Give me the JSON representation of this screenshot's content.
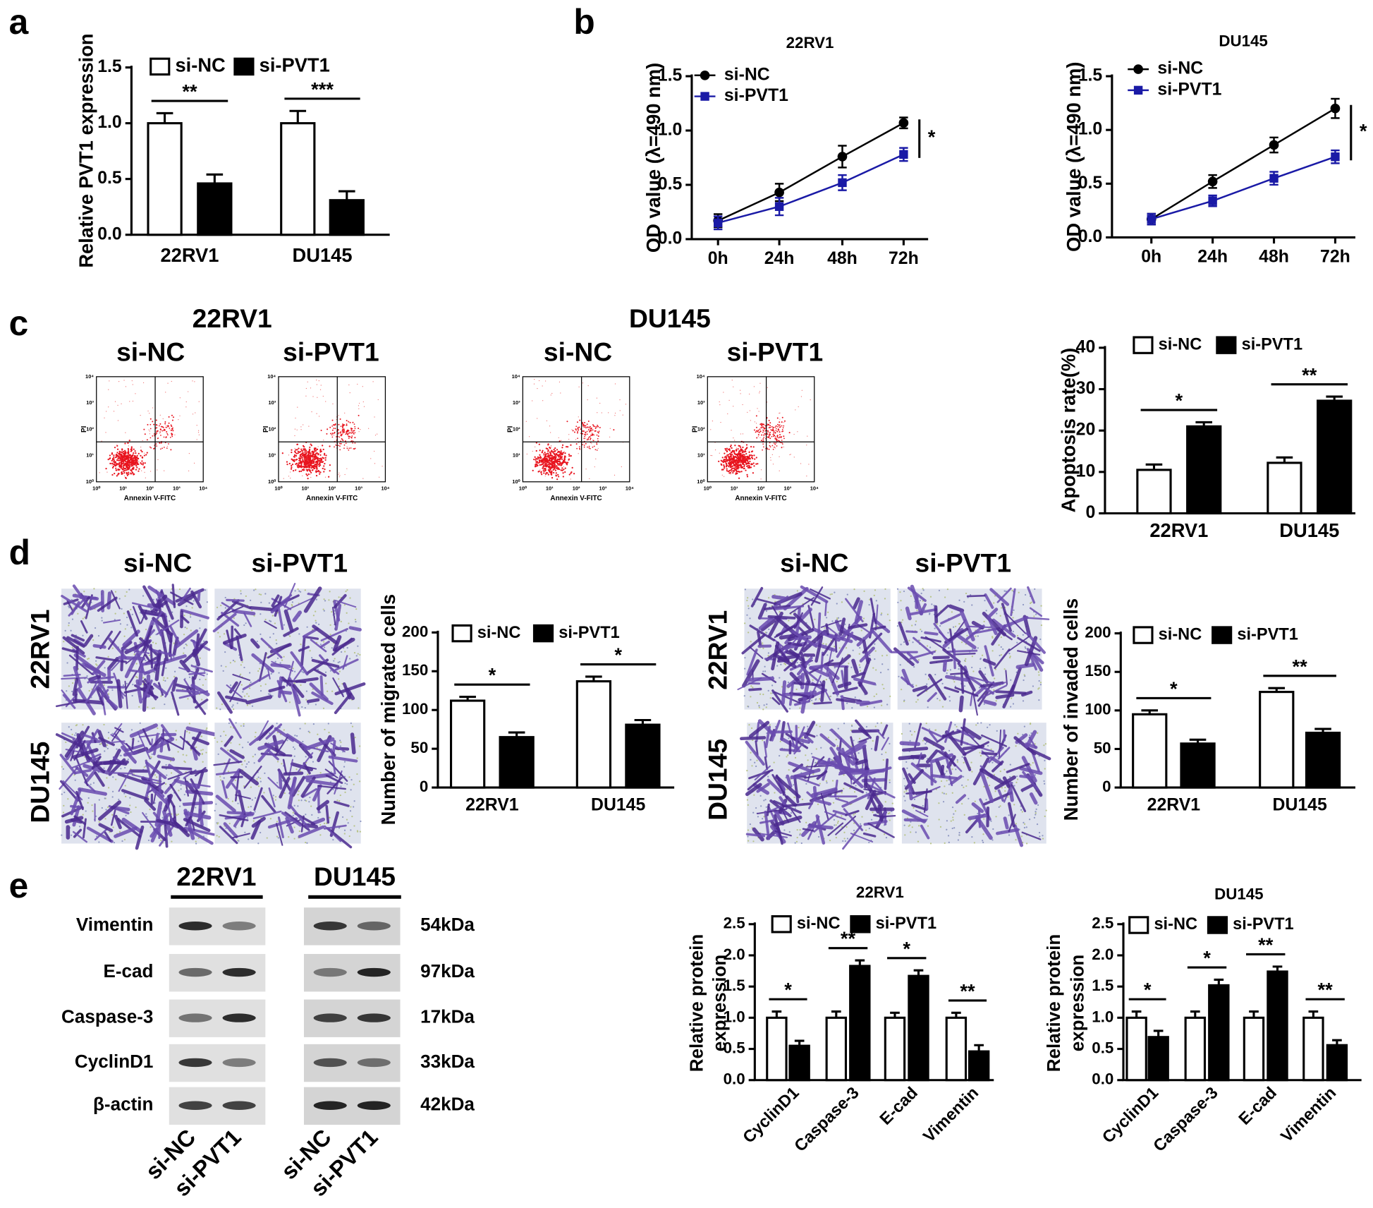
{
  "figure": {
    "panel_labels": [
      "a",
      "b",
      "c",
      "d",
      "e"
    ],
    "flow": {
      "cell_lines": [
        "22RV1",
        "DU145"
      ],
      "groups": [
        "si-NC",
        "si-PVT1"
      ],
      "y_label": "PI",
      "x_label": "Annexin V-FITC",
      "tick_labels": [
        "10⁰",
        "10¹",
        "10²",
        "10³",
        "10⁴"
      ]
    },
    "transwell": {
      "groups": [
        "si-NC",
        "si-PVT1"
      ],
      "cell_lines": [
        "22RV1",
        "DU145"
      ]
    },
    "western": {
      "cell_lines": [
        "22RV1",
        "DU145"
      ],
      "proteins": [
        "Vimentin",
        "E-cad",
        "Caspase-3",
        "CyclinD1",
        "β-actin"
      ],
      "sizes": [
        "54kDa",
        "97kDa",
        "17kDa",
        "33kDa",
        "42kDa"
      ],
      "lanes": [
        "si-NC",
        "si-PVT1"
      ]
    }
  },
  "chart_data": [
    {
      "type": "bar",
      "y_label": "Relative PVT1 expression",
      "categories": [
        "22RV1",
        "DU145"
      ],
      "series": [
        {
          "name": "si-NC",
          "color": "#ffffff",
          "values": [
            1.0,
            1.0
          ],
          "errors": [
            0.09,
            0.11
          ]
        },
        {
          "name": "si-PVT1",
          "color": "#000000",
          "values": [
            0.46,
            0.31
          ],
          "errors": [
            0.08,
            0.08
          ]
        }
      ],
      "significance": [
        "**",
        "***"
      ],
      "ylim": [
        0,
        1.5
      ],
      "yticks": [
        {
          "value": 0,
          "label": "0.0"
        },
        0.5,
        {
          "value": 1,
          "label": "1.0"
        },
        1.5
      ]
    },
    {
      "type": "line",
      "title": "22RV1",
      "y_label": "OD value (λ=490 nm)",
      "categories": [
        "0h",
        "24h",
        "48h",
        "72h"
      ],
      "series": [
        {
          "name": "si-NC",
          "color": "#000000",
          "marker": "circle",
          "values": [
            0.17,
            0.43,
            0.76,
            1.07
          ],
          "errors": [
            0.06,
            0.08,
            0.1,
            0.05
          ]
        },
        {
          "name": "si-PVT1",
          "color": "#1a1aa6",
          "marker": "square",
          "values": [
            0.15,
            0.3,
            0.52,
            0.78
          ],
          "errors": [
            0.06,
            0.08,
            0.07,
            0.06
          ]
        }
      ],
      "significance": "*",
      "ylim": [
        0,
        1.5
      ],
      "yticks": [
        {
          "value": 0,
          "label": "0.0"
        },
        0.5,
        {
          "value": 1,
          "label": "1.0"
        },
        1.5
      ]
    },
    {
      "type": "line",
      "title": "DU145",
      "y_label": "OD value (λ=490 nm)",
      "categories": [
        "0h",
        "24h",
        "48h",
        "72h"
      ],
      "series": [
        {
          "name": "si-NC",
          "color": "#000000",
          "marker": "circle",
          "values": [
            0.17,
            0.52,
            0.86,
            1.2
          ],
          "errors": [
            0.05,
            0.06,
            0.07,
            0.09
          ]
        },
        {
          "name": "si-PVT1",
          "color": "#1a1aa6",
          "marker": "square",
          "values": [
            0.17,
            0.34,
            0.55,
            0.75
          ],
          "errors": [
            0.05,
            0.05,
            0.06,
            0.06
          ]
        }
      ],
      "significance": "*",
      "ylim": [
        0,
        1.5
      ],
      "yticks": [
        {
          "value": 0,
          "label": "0.0"
        },
        0.5,
        {
          "value": 1,
          "label": "1.0"
        },
        1.5
      ]
    },
    {
      "type": "bar",
      "y_label": "Apoptosis rate(%)",
      "categories": [
        "22RV1",
        "DU145"
      ],
      "series": [
        {
          "name": "si-NC",
          "color": "#ffffff",
          "values": [
            10.5,
            12.2
          ],
          "errors": [
            1.3,
            1.3
          ]
        },
        {
          "name": "si-PVT1",
          "color": "#000000",
          "values": [
            21,
            27.2
          ],
          "errors": [
            1.0,
            1.0
          ]
        }
      ],
      "significance": [
        "*",
        "**"
      ],
      "ylim": [
        0,
        40
      ],
      "yticks": [
        0,
        10,
        20,
        30,
        40
      ]
    },
    {
      "type": "bar",
      "y_label": "Number of migrated cells",
      "categories": [
        "22RV1",
        "DU145"
      ],
      "series": [
        {
          "name": "si-NC",
          "color": "#ffffff",
          "values": [
            112,
            137
          ],
          "errors": [
            5,
            6
          ]
        },
        {
          "name": "si-PVT1",
          "color": "#000000",
          "values": [
            65,
            81
          ],
          "errors": [
            6,
            6
          ]
        }
      ],
      "significance": [
        "*",
        "*"
      ],
      "ylim": [
        0,
        200
      ],
      "yticks": [
        0,
        50,
        100,
        150,
        200
      ]
    },
    {
      "type": "bar",
      "y_label": "Number of invaded cells",
      "categories": [
        "22RV1",
        "DU145"
      ],
      "series": [
        {
          "name": "si-NC",
          "color": "#ffffff",
          "values": [
            95,
            124
          ],
          "errors": [
            5,
            5
          ]
        },
        {
          "name": "si-PVT1",
          "color": "#000000",
          "values": [
            57,
            71
          ],
          "errors": [
            5,
            5
          ]
        }
      ],
      "significance": [
        "*",
        "**"
      ],
      "ylim": [
        0,
        200
      ],
      "yticks": [
        0,
        50,
        100,
        150,
        200
      ]
    },
    {
      "type": "bar",
      "title": "22RV1",
      "y_label": [
        "Relative  protein",
        "expression"
      ],
      "categories": [
        "CyclinD1",
        "Caspase-3",
        "E-cad",
        "Vimentin"
      ],
      "series": [
        {
          "name": "si-NC",
          "color": "#ffffff",
          "values": [
            1.0,
            1.0,
            1.0,
            1.0
          ],
          "errors": [
            0.1,
            0.1,
            0.08,
            0.08
          ]
        },
        {
          "name": "si-PVT1",
          "color": "#000000",
          "values": [
            0.55,
            1.83,
            1.67,
            0.46
          ],
          "errors": [
            0.08,
            0.09,
            0.09,
            0.1
          ]
        }
      ],
      "significance": [
        "*",
        "**",
        "*",
        "**"
      ],
      "ylim": [
        0,
        2.5
      ],
      "yticks": [
        {
          "value": 0,
          "label": "0.0"
        },
        0.5,
        {
          "value": 1,
          "label": "1.0"
        },
        1.5,
        {
          "value": 2,
          "label": "2.0"
        },
        2.5
      ]
    },
    {
      "type": "bar",
      "title": "DU145",
      "y_label": [
        "Relative  protein",
        "expression"
      ],
      "categories": [
        "CyclinD1",
        "Caspase-3",
        "E-cad",
        "Vimentin"
      ],
      "series": [
        {
          "name": "si-NC",
          "color": "#ffffff",
          "values": [
            1.0,
            1.0,
            1.0,
            1.0
          ],
          "errors": [
            0.1,
            0.1,
            0.1,
            0.1
          ]
        },
        {
          "name": "si-PVT1",
          "color": "#000000",
          "values": [
            0.69,
            1.52,
            1.74,
            0.56
          ],
          "errors": [
            0.1,
            0.09,
            0.08,
            0.08
          ]
        }
      ],
      "significance": [
        "*",
        "*",
        "**",
        "**"
      ],
      "ylim": [
        0,
        2.5
      ],
      "yticks": [
        {
          "value": 0,
          "label": "0.0"
        },
        0.5,
        {
          "value": 1,
          "label": "1.0"
        },
        1.5,
        {
          "value": 2,
          "label": "2.0"
        },
        2.5
      ]
    }
  ]
}
